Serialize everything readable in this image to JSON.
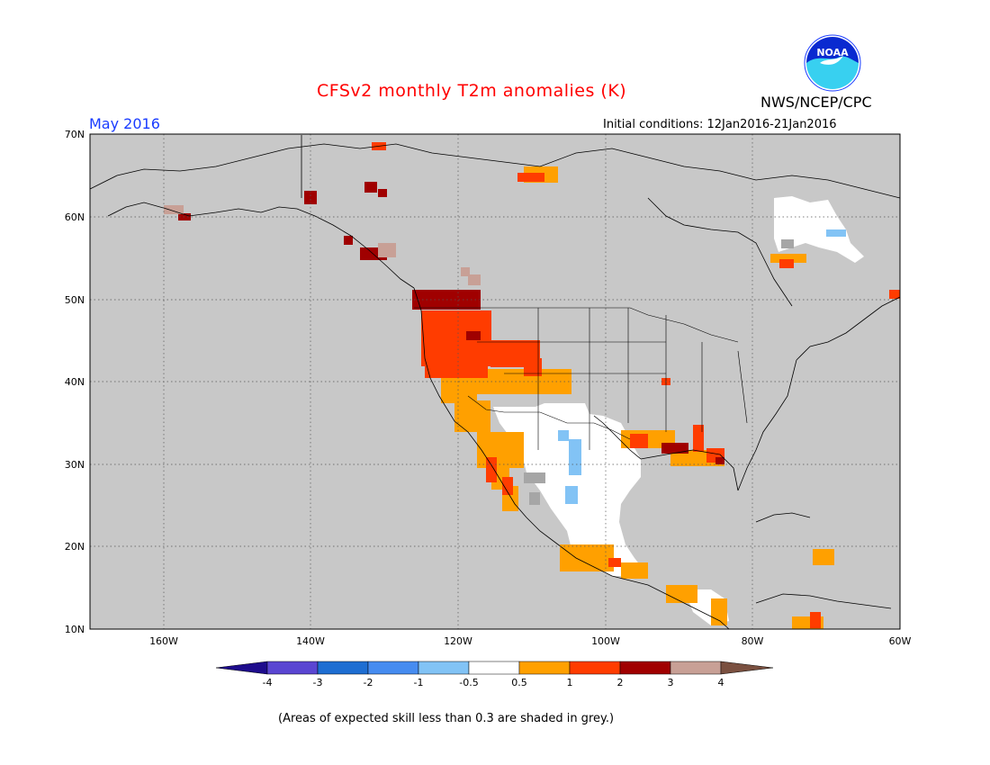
{
  "header": {
    "title": "CFSv2 monthly T2m anomalies (K)",
    "agency": "NWS/NCEP/CPC",
    "logo_text": "NOAA",
    "month": "May 2016",
    "initial_conditions": "Initial conditions: 12Jan2016-21Jan2016"
  },
  "map": {
    "projection": "lat-lon",
    "lon_range": [
      -170,
      -60
    ],
    "lat_range": [
      10,
      70
    ],
    "lat_labels": [
      "70N",
      "60N",
      "50N",
      "40N",
      "30N",
      "20N",
      "10N"
    ],
    "lon_labels": [
      "160W",
      "140W",
      "120W",
      "100W",
      "80W",
      "60W"
    ],
    "background_color": "#c8c8c8",
    "grid": "dotted"
  },
  "colorbar": {
    "labels": [
      "-4",
      "-3",
      "-2",
      "-1",
      "-0.5",
      "0.5",
      "1",
      "2",
      "3",
      "4"
    ],
    "colors": [
      "#1e0c8c",
      "#5a46d2",
      "#1e6ed2",
      "#468cf0",
      "#82c3f5",
      "#ffffff",
      "#ffa000",
      "#ff3c00",
      "#a00000",
      "#c8a096",
      "#7a5040"
    ]
  },
  "footnote": "(Areas of expected skill less than 0.3 are shaded in grey.)"
}
